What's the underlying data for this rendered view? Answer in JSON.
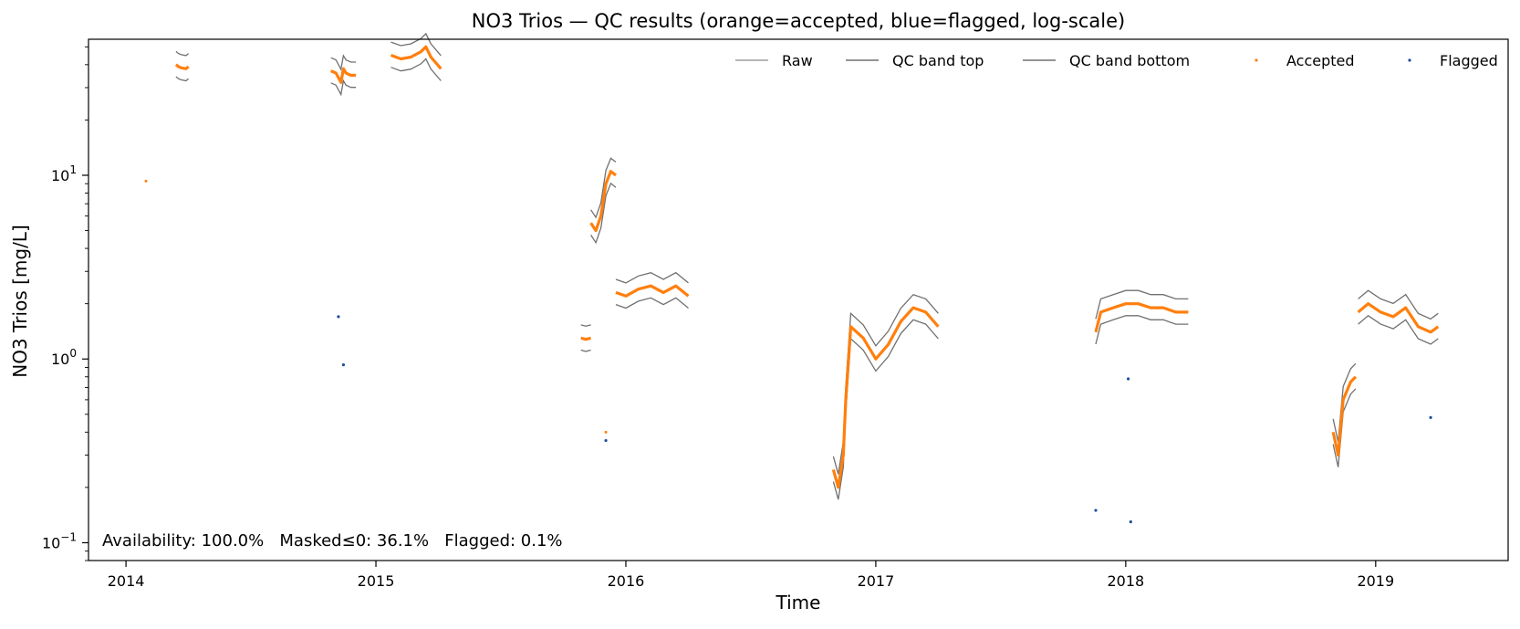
{
  "chart_data": {
    "type": "line",
    "title": "NO3 Trios — QC results (orange=accepted, blue=flagged, log-scale)",
    "xlabel": "Time",
    "ylabel": "NO3 Trios [mg/L]",
    "yscale": "log",
    "xlim": [
      2013.85,
      2019.53
    ],
    "ylim": [
      0.08,
      55
    ],
    "x_ticks": [
      "2014",
      "2015",
      "2016",
      "2017",
      "2018",
      "2019"
    ],
    "x_tick_values": [
      2014,
      2015,
      2016,
      2017,
      2018,
      2019
    ],
    "y_ticks": [
      {
        "value": 10,
        "base": "10",
        "exp": "1"
      },
      {
        "value": 1,
        "base": "10",
        "exp": "0"
      },
      {
        "value": 0.1,
        "base": "10",
        "exp": "−1"
      }
    ],
    "grid": false,
    "legend": {
      "position": "top-right",
      "entries": [
        {
          "label": "Raw",
          "marker": "line",
          "color": "#9e9e9e"
        },
        {
          "label": "QC band top",
          "marker": "line",
          "color": "#707070"
        },
        {
          "label": "QC band bottom",
          "marker": "line",
          "color": "#707070"
        },
        {
          "label": "Accepted",
          "marker": "dot",
          "color": "#ff7f0e"
        },
        {
          "label": "Flagged",
          "marker": "dot",
          "color": "#1f4e9a"
        }
      ]
    },
    "annotation": "Availability: 100.0%   Masked≤0: 36.1%   Flagged: 0.1%",
    "colors": {
      "accepted": "#ff7f0e",
      "flagged": "#1f4e9a",
      "band": "#707070",
      "raw": "#9e9e9e"
    },
    "accepted_segments": [
      {
        "x": [
          2014.2,
          2014.21,
          2014.22,
          2014.24,
          2014.25
        ],
        "y": [
          40,
          39,
          38.5,
          38,
          39
        ]
      },
      {
        "x": [
          2014.82,
          2014.84,
          2014.86,
          2014.87,
          2014.88,
          2014.9,
          2014.92
        ],
        "y": [
          37,
          36,
          32,
          38,
          36,
          35,
          35
        ]
      },
      {
        "x": [
          2015.06,
          2015.1,
          2015.14,
          2015.18,
          2015.2,
          2015.22,
          2015.26
        ],
        "y": [
          45,
          43,
          44,
          47,
          50,
          44,
          38
        ]
      },
      {
        "x": [
          2015.82,
          2015.84,
          2015.86
        ],
        "y": [
          1.3,
          1.28,
          1.3
        ]
      },
      {
        "x": [
          2015.86,
          2015.88,
          2015.9,
          2015.92,
          2015.94,
          2015.96
        ],
        "y": [
          5.5,
          5,
          6,
          9,
          10.5,
          10
        ]
      },
      {
        "x": [
          2015.96,
          2016.0,
          2016.05,
          2016.1,
          2016.15,
          2016.2,
          2016.25
        ],
        "y": [
          2.3,
          2.2,
          2.4,
          2.5,
          2.3,
          2.5,
          2.2
        ]
      },
      {
        "x": [
          2016.83,
          2016.85,
          2016.87,
          2016.88,
          2016.9,
          2016.95,
          2017.0,
          2017.05,
          2017.1,
          2017.15,
          2017.2,
          2017.25
        ],
        "y": [
          0.25,
          0.2,
          0.3,
          0.6,
          1.5,
          1.3,
          1.0,
          1.2,
          1.6,
          1.9,
          1.8,
          1.5
        ]
      },
      {
        "x": [
          2017.88,
          2017.9,
          2017.95,
          2018.0,
          2018.05,
          2018.1,
          2018.15,
          2018.2,
          2018.25
        ],
        "y": [
          1.4,
          1.8,
          1.9,
          2.0,
          2.0,
          1.9,
          1.9,
          1.8,
          1.8
        ]
      },
      {
        "x": [
          2018.83,
          2018.85,
          2018.87,
          2018.9,
          2018.92
        ],
        "y": [
          0.4,
          0.3,
          0.6,
          0.75,
          0.8
        ]
      },
      {
        "x": [
          2018.93,
          2018.97,
          2019.02,
          2019.07,
          2019.12,
          2019.17,
          2019.22,
          2019.25
        ],
        "y": [
          1.8,
          2.0,
          1.8,
          1.7,
          1.9,
          1.5,
          1.4,
          1.5
        ]
      }
    ],
    "accepted_points": [
      {
        "x": 2014.08,
        "y": 9.3
      },
      {
        "x": 2015.92,
        "y": 0.4
      }
    ],
    "flagged_points": [
      {
        "x": 2014.85,
        "y": 1.7
      },
      {
        "x": 2014.87,
        "y": 0.93
      },
      {
        "x": 2015.92,
        "y": 0.36
      },
      {
        "x": 2017.88,
        "y": 0.15
      },
      {
        "x": 2018.01,
        "y": 0.78
      },
      {
        "x": 2018.02,
        "y": 0.13
      },
      {
        "x": 2019.22,
        "y": 0.48
      }
    ]
  }
}
